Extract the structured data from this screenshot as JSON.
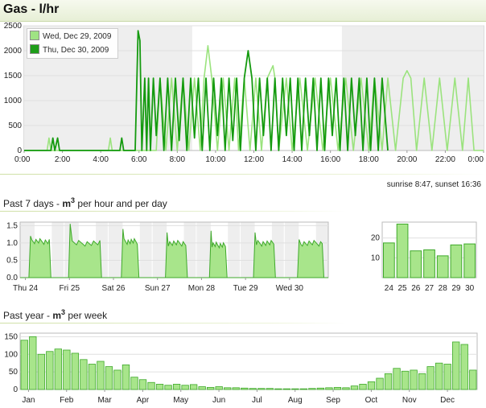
{
  "header": {
    "title": "Gas - l/hr"
  },
  "sun_info": "sunrise 8:47, sunset 16:36",
  "sections": {
    "week_prefix": "Past 7 days - ",
    "week_unit": "m",
    "week_sup": "3",
    "week_suffix": " per hour and per day",
    "year_prefix": "Past year - ",
    "year_unit": "m",
    "year_sup": "3",
    "year_suffix": " per week"
  },
  "colors": {
    "light_green": "#9be37e",
    "dark_green": "#149a0f",
    "bar_fill": "#a8e58b",
    "bar_stroke": "#3fa92b",
    "night_shade": "#eeeeee"
  },
  "chart_data": [
    {
      "type": "line",
      "title": "Gas - l/hr",
      "ylim": [
        0,
        2500
      ],
      "xlim": [
        0,
        24
      ],
      "x_ticks": [
        0,
        2,
        4,
        6,
        8,
        10,
        12,
        14,
        16,
        18,
        20,
        22,
        24
      ],
      "x_tick_labels": [
        "0:00",
        "2:00",
        "4:00",
        "6:00",
        "8:00",
        "10:00",
        "12:00",
        "14:00",
        "16:00",
        "18:00",
        "20:00",
        "22:00",
        "0:00"
      ],
      "y_ticks": [
        0,
        500,
        1000,
        1500,
        2000,
        2500
      ],
      "y_tick_labels": [
        "0",
        "500",
        "1000",
        "1500",
        "2000",
        "2500"
      ],
      "legend_position": "top-left",
      "night_bands": [
        [
          0,
          8.78
        ],
        [
          16.6,
          24
        ]
      ],
      "series": [
        {
          "name": "Wed, Dec 29, 2009",
          "color": "#9be37e",
          "x": [
            0,
            1.2,
            1.3,
            1.4,
            2.3,
            4.4,
            4.5,
            4.6,
            5.8,
            6.0,
            6.1,
            6.4,
            6.6,
            6.9,
            7.1,
            7.4,
            7.7,
            8.0,
            8.3,
            8.6,
            8.9,
            9.2,
            9.4,
            9.6,
            9.8,
            10.1,
            10.4,
            10.7,
            11.0,
            11.2,
            11.5,
            11.8,
            12.1,
            12.4,
            12.7,
            13.0,
            13.1,
            13.3,
            13.7,
            14.0,
            14.4,
            14.8,
            15.2,
            15.6,
            16.0,
            16.4,
            16.8,
            17.2,
            17.6,
            18.0,
            18.3,
            18.7,
            19.0,
            19.4,
            19.8,
            20.0,
            20.2,
            20.5,
            20.9,
            21.3,
            21.7,
            22.1,
            22.5,
            22.9,
            23.2,
            23.5,
            24
          ],
          "y": [
            0,
            0,
            250,
            0,
            0,
            0,
            250,
            0,
            0,
            0,
            0,
            0,
            0,
            0,
            1450,
            0,
            1450,
            0,
            1450,
            0,
            1450,
            0,
            1450,
            2100,
            1450,
            0,
            1450,
            0,
            1450,
            0,
            1450,
            0,
            1450,
            0,
            1450,
            1700,
            1450,
            0,
            1450,
            0,
            1450,
            0,
            1450,
            0,
            1450,
            0,
            1450,
            0,
            1450,
            0,
            1450,
            0,
            1450,
            0,
            1450,
            1600,
            1450,
            0,
            1450,
            0,
            1450,
            0,
            1450,
            0,
            1450,
            0,
            0
          ]
        },
        {
          "name": "Thu, Dec 30, 2009",
          "color": "#149a0f",
          "x": [
            0,
            1.4,
            1.5,
            1.6,
            1.75,
            1.85,
            2.3,
            5.0,
            5.1,
            5.2,
            5.8,
            5.95,
            6.05,
            6.15,
            6.3,
            6.4,
            6.5,
            6.6,
            6.75,
            6.9,
            7.1,
            7.3,
            7.5,
            7.7,
            7.9,
            8.1,
            8.3,
            8.5,
            8.7,
            8.9,
            9.1,
            9.3,
            9.5,
            9.7,
            9.9,
            10.1,
            10.3,
            10.5,
            10.7,
            10.9,
            11.1,
            11.3,
            11.5,
            11.7,
            11.9,
            12.1,
            12.3,
            12.5,
            12.7,
            12.9,
            13.1,
            13.3,
            13.5,
            13.7,
            13.9,
            14.1,
            14.3,
            14.5,
            14.7,
            14.9,
            15.1,
            15.3,
            15.5,
            15.7,
            15.9,
            16.1,
            16.3,
            16.5,
            16.7,
            16.9,
            17.1,
            17.3,
            17.5,
            17.7,
            17.9,
            18.1,
            18.3,
            18.5,
            18.7,
            19.0
          ],
          "y": [
            0,
            0,
            250,
            0,
            250,
            0,
            0,
            0,
            250,
            0,
            0,
            2400,
            2200,
            0,
            1450,
            0,
            1450,
            0,
            1450,
            300,
            1450,
            0,
            1450,
            0,
            1450,
            200,
            1450,
            0,
            1450,
            250,
            1450,
            0,
            1450,
            0,
            1450,
            300,
            1450,
            0,
            1450,
            200,
            1450,
            0,
            1450,
            2000,
            1450,
            0,
            1450,
            300,
            1450,
            0,
            1450,
            0,
            1450,
            300,
            1450,
            0,
            1450,
            0,
            1450,
            300,
            1450,
            0,
            1450,
            0,
            1450,
            300,
            1450,
            0,
            1450,
            0,
            1450,
            300,
            1450,
            0,
            1450,
            0,
            1450,
            0,
            1450,
            0
          ]
        }
      ]
    },
    {
      "type": "area",
      "ylim": [
        0,
        1.6
      ],
      "y_ticks": [
        0,
        0.5,
        1,
        1.5
      ],
      "y_tick_labels": [
        "0.0",
        "0.5",
        "1.0",
        "1.5"
      ],
      "x_tick_labels": [
        "Thu 24",
        "Fri 25",
        "Sat 26",
        "Sun 27",
        "Mon 28",
        "Tue 29",
        "Wed 30"
      ],
      "days": [
        {
          "on": [
            0.2,
            0.7
          ],
          "level": 1.05,
          "peak": 1.2
        },
        {
          "on": [
            0.1,
            0.85
          ],
          "level": 1.0,
          "peak": 1.55
        },
        {
          "on": [
            0.3,
            0.7
          ],
          "level": 1.05,
          "peak": 1.4
        },
        {
          "on": [
            0.3,
            0.8
          ],
          "level": 1.0,
          "peak": 1.3
        },
        {
          "on": [
            0.3,
            0.7
          ],
          "level": 0.95,
          "peak": 1.35
        },
        {
          "on": [
            0.3,
            0.8
          ],
          "level": 1.0,
          "peak": 1.3
        },
        {
          "on": [
            0.3,
            0.9
          ],
          "level": 1.0,
          "peak": 1.1
        }
      ]
    },
    {
      "type": "bar",
      "categories": [
        "24",
        "25",
        "26",
        "27",
        "28",
        "29",
        "30"
      ],
      "values": [
        17.5,
        27,
        13.5,
        14,
        11,
        16.5,
        17
      ],
      "ylim": [
        0,
        28
      ],
      "y_ticks": [
        10,
        20
      ],
      "y_tick_labels": [
        "10",
        "20"
      ]
    },
    {
      "type": "bar",
      "ylim": [
        0,
        160
      ],
      "y_ticks": [
        0,
        50,
        100,
        150
      ],
      "y_tick_labels": [
        "0",
        "50",
        "100",
        "150"
      ],
      "x_tick_labels": [
        "Jan",
        "Feb",
        "Mar",
        "Apr",
        "May",
        "Jun",
        "Jul",
        "Aug",
        "Sep",
        "Oct",
        "Nov",
        "Dec"
      ],
      "values": [
        140,
        150,
        100,
        108,
        115,
        112,
        103,
        85,
        72,
        80,
        65,
        55,
        70,
        35,
        28,
        20,
        15,
        12,
        15,
        12,
        14,
        8,
        6,
        8,
        5,
        5,
        4,
        3,
        3,
        3,
        2,
        2,
        2,
        2,
        3,
        4,
        5,
        6,
        5,
        10,
        15,
        22,
        32,
        45,
        60,
        52,
        55,
        45,
        65,
        75,
        72,
        135,
        128,
        55
      ]
    }
  ]
}
